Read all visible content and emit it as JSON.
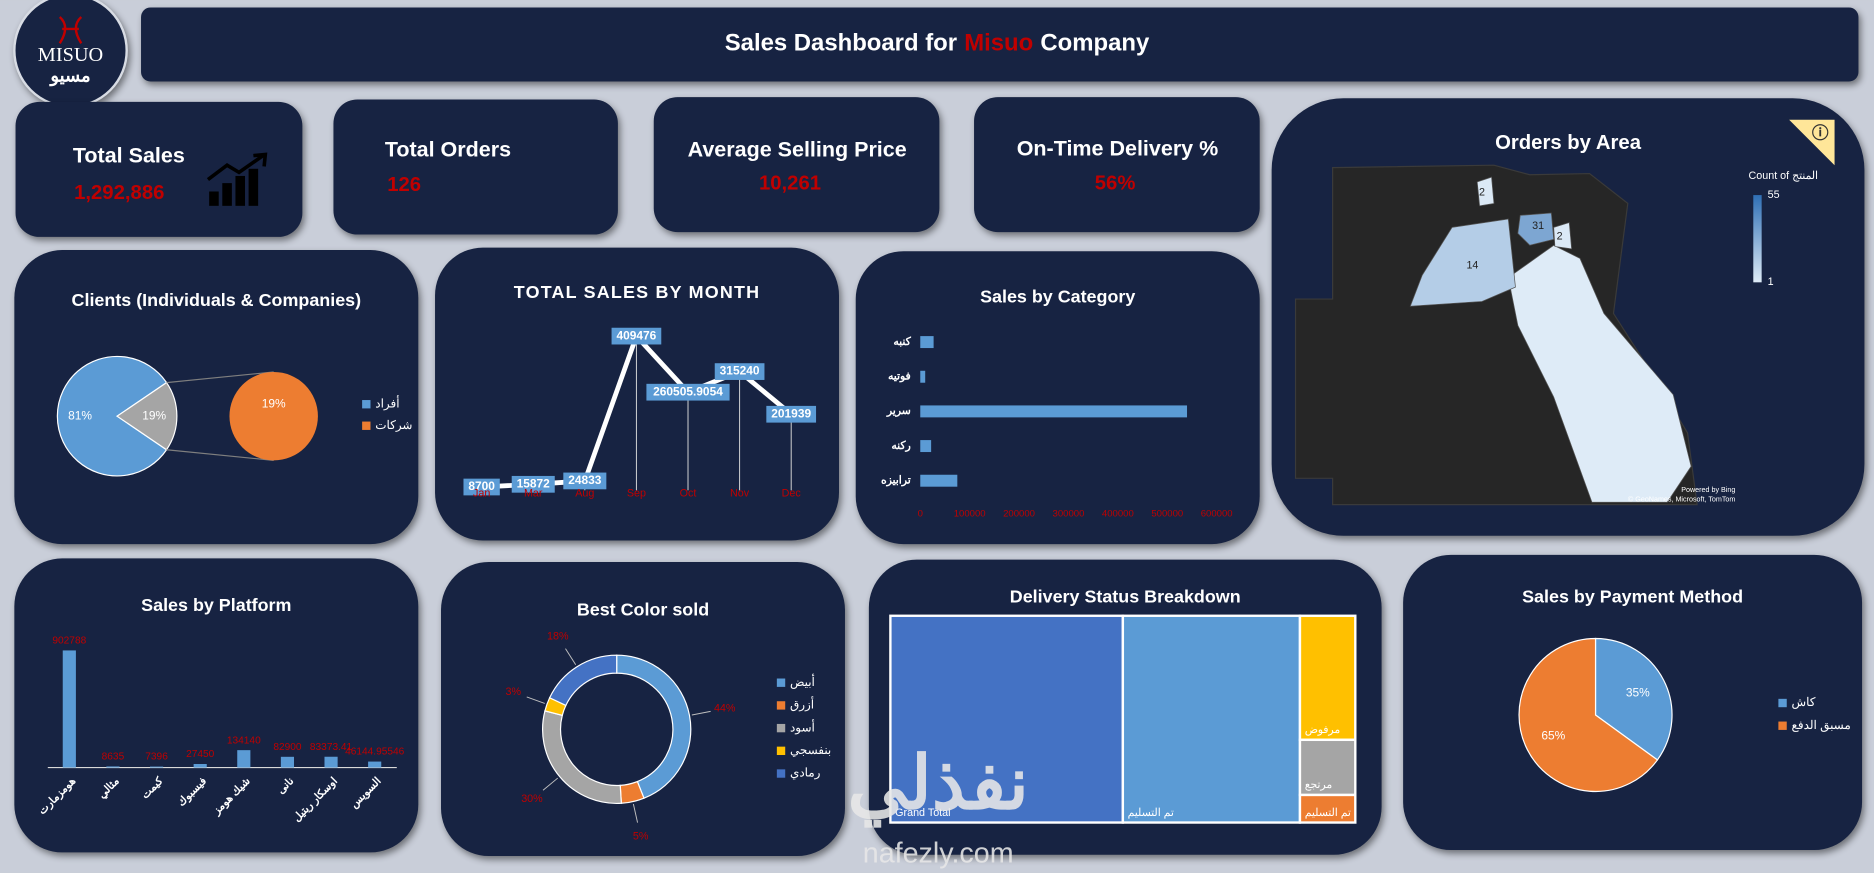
{
  "header": {
    "logo": {
      "latin": "MISUO",
      "arabic": "مسيو"
    },
    "title": {
      "before": "Sales Dashboard for",
      "highlight": "Misuo",
      "after": "Company"
    }
  },
  "kpis": [
    {
      "label": "Total Sales",
      "value": 1292886,
      "value_label": "1,292,886"
    },
    {
      "label": "Total Orders",
      "value": 126
    },
    {
      "label": "Average Selling Price",
      "value": 10261,
      "value_label": "10,261"
    },
    {
      "label": "On-Time Delivery %",
      "value": 56,
      "value_label": "56%"
    }
  ],
  "chart_data": [
    {
      "type": "pie",
      "title": "Clients (Individuals & Companies)",
      "pie_of_pie": true,
      "categories": [
        "أفراد",
        "شركات"
      ],
      "values": [
        81,
        19
      ],
      "value_labels": [
        "81%",
        "19%"
      ],
      "colors": [
        "#5b9bd5",
        "#ed7d31"
      ],
      "grouped_color": "#a5a5a5",
      "legend": "right"
    },
    {
      "type": "line",
      "title": "TOTAL SALES BY MONTH",
      "categories": [
        "Jan",
        "Mar",
        "Aug",
        "Sep",
        "Oct",
        "Nov",
        "Dec"
      ],
      "values": [
        8700,
        15872,
        24833,
        409476,
        260505.9054,
        315240,
        201939
      ],
      "color": "#ffffff",
      "label_color": "#5b9bd5"
    },
    {
      "type": "bar",
      "orientation": "horizontal",
      "title": "Sales by Category",
      "categories": [
        "كنبه",
        "فوتيه",
        "سرير",
        "ركنه",
        "ترابيزه"
      ],
      "values": [
        27000,
        10000,
        540000,
        22000,
        75000
      ],
      "color": "#5b9bd5",
      "xlim": [
        0,
        600000
      ],
      "xticks": [
        0,
        100000,
        200000,
        300000,
        400000,
        500000,
        600000
      ]
    },
    {
      "type": "map",
      "title": "Orders by Area",
      "values": [
        2,
        31,
        2,
        14
      ],
      "legend_title": "Count of المنتج",
      "clim": [
        1,
        55
      ],
      "colors": [
        "#deebf7",
        "#2f6fb5"
      ],
      "attribution": [
        "Powered by Bing",
        "© GeoNames, Microsoft, TomTom"
      ]
    },
    {
      "type": "bar",
      "orientation": "vertical",
      "title": "Sales by Platform",
      "categories": [
        "هومزمارت",
        "مثالي",
        "كيمت",
        "فيسبوك",
        "شيك هومز",
        "نانى",
        "اوسكار ريتيل",
        "السويس"
      ],
      "values": [
        902788,
        8635,
        7396,
        27450,
        134140,
        82900,
        83373.41,
        46144.95546
      ],
      "color": "#5b9bd5"
    },
    {
      "type": "donut",
      "title": "Best Color sold",
      "categories": [
        "أبيض",
        "أزرق",
        "أسود",
        "بنفسجي",
        "رمادي"
      ],
      "values": [
        44,
        5,
        30,
        3,
        18
      ],
      "value_labels": [
        "44%",
        "5%",
        "30%",
        "3%",
        "18%"
      ],
      "colors": [
        "#5b9bd5",
        "#ed7d31",
        "#a5a5a5",
        "#ffc000",
        "#4472c4"
      ],
      "legend": "right"
    },
    {
      "type": "treemap",
      "title": "Delivery Status Breakdown",
      "categories": [
        "Grand Total",
        "تم التسليم",
        "مرفوض",
        "مرتجع",
        "تم التسليم"
      ],
      "values": [
        63,
        48,
        9,
        4,
        2
      ],
      "colors": [
        "#4472c4",
        "#5b9bd5",
        "#ffc000",
        "#a5a5a5",
        "#ed7d31"
      ]
    },
    {
      "type": "pie",
      "title": "Sales by Payment Method",
      "categories": [
        "كاش",
        "مسبق الدفع"
      ],
      "values": [
        35,
        65
      ],
      "value_labels": [
        "35%",
        "65%"
      ],
      "colors": [
        "#5b9bd5",
        "#ed7d31"
      ],
      "legend": "right"
    }
  ],
  "watermark": {
    "arabic": "نفذلي",
    "latin": "nafezly.com"
  }
}
